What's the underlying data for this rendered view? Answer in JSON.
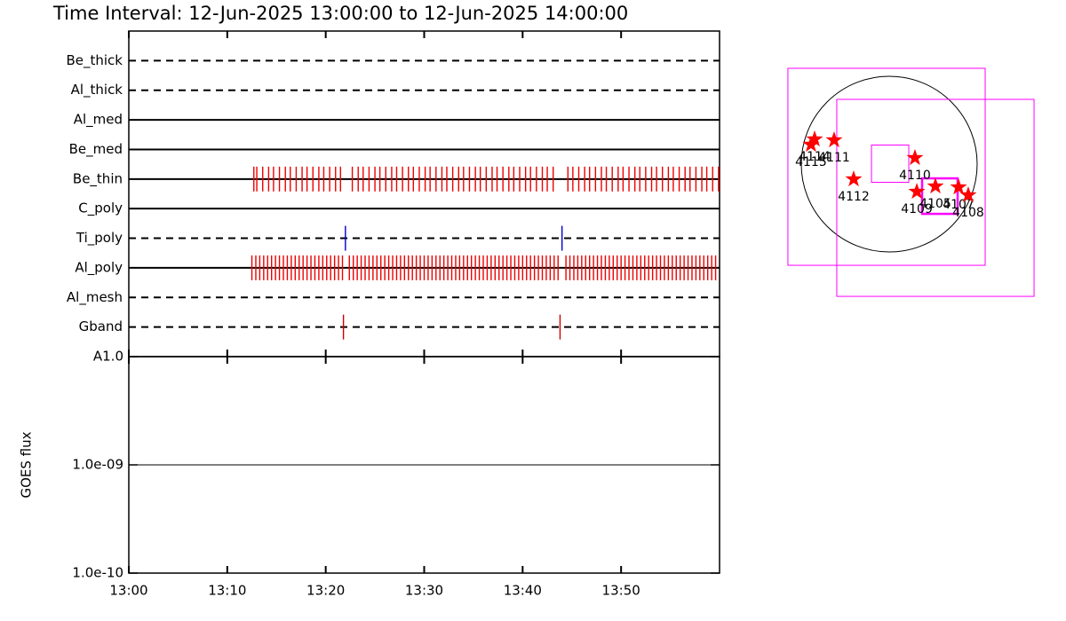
{
  "chart_data": [
    {
      "type": "timeline",
      "title": "Time Interval: 12-Jun-2025 13:00:00 to 12-Jun-2025 14:00:00",
      "xlim": [
        0,
        60
      ],
      "xticks": [
        {
          "value": 0,
          "label": "13:00"
        },
        {
          "value": 10,
          "label": "13:10"
        },
        {
          "value": 20,
          "label": "13:20"
        },
        {
          "value": 30,
          "label": "13:30"
        },
        {
          "value": 40,
          "label": "13:40"
        },
        {
          "value": 50,
          "label": "13:50"
        }
      ],
      "series": [
        {
          "name": "Be_thick",
          "style": "dashed",
          "color": "#ff0000",
          "values": []
        },
        {
          "name": "Al_thick",
          "style": "dashed",
          "color": "#ff0000",
          "values": []
        },
        {
          "name": "Al_med",
          "style": "solid",
          "color": "#ff0000",
          "values": []
        },
        {
          "name": "Be_med",
          "style": "solid",
          "color": "#ff0000",
          "values": []
        },
        {
          "name": "Be_thin",
          "style": "solid",
          "color": "#ee0000",
          "values": [
            12.7,
            13.0,
            13.6,
            14.2,
            14.7,
            15.3,
            15.9,
            16.4,
            17.0,
            17.6,
            18.1,
            18.7,
            19.3,
            19.8,
            20.4,
            21.0,
            21.5,
            22.7,
            23.3,
            23.8,
            24.4,
            25.0,
            25.5,
            26.1,
            26.7,
            27.2,
            27.8,
            28.4,
            28.9,
            29.5,
            30.1,
            30.6,
            31.2,
            31.8,
            32.3,
            32.9,
            33.5,
            34.0,
            34.6,
            35.2,
            35.7,
            36.3,
            36.9,
            37.4,
            38.0,
            38.6,
            39.1,
            39.7,
            40.3,
            40.8,
            41.4,
            42.0,
            42.5,
            43.1,
            44.6,
            45.1,
            45.7,
            46.3,
            46.8,
            47.4,
            48.0,
            48.5,
            49.1,
            49.7,
            50.2,
            50.8,
            51.4,
            51.9,
            52.5,
            53.1,
            53.6,
            54.2,
            54.8,
            55.3,
            55.9,
            56.5,
            57.0,
            57.6,
            58.2,
            58.7,
            59.3,
            59.9
          ]
        },
        {
          "name": "C_poly",
          "style": "solid",
          "color": "#ff0000",
          "values": []
        },
        {
          "name": "Ti_poly",
          "style": "dashed",
          "color": "#0000cc",
          "values": [
            22.0,
            44.0
          ]
        },
        {
          "name": "Al_poly",
          "style": "solid",
          "color": "#ee0000",
          "values": [
            12.5,
            12.9,
            13.3,
            13.7,
            14.1,
            14.5,
            14.9,
            15.3,
            15.7,
            16.1,
            16.5,
            16.9,
            17.3,
            17.7,
            18.1,
            18.5,
            18.9,
            19.3,
            19.7,
            20.1,
            20.5,
            20.9,
            21.3,
            21.7,
            22.4,
            22.8,
            23.2,
            23.6,
            24.0,
            24.4,
            24.8,
            25.2,
            25.6,
            26.0,
            26.4,
            26.8,
            27.2,
            27.6,
            28.0,
            28.4,
            28.8,
            29.2,
            29.6,
            30.0,
            30.4,
            30.8,
            31.2,
            31.6,
            32.0,
            32.4,
            32.8,
            33.2,
            33.6,
            34.0,
            34.4,
            34.8,
            35.2,
            35.6,
            36.0,
            36.4,
            36.8,
            37.2,
            37.6,
            38.0,
            38.4,
            38.8,
            39.2,
            39.6,
            40.0,
            40.4,
            40.8,
            41.2,
            41.6,
            42.0,
            42.4,
            42.8,
            43.2,
            43.6,
            44.4,
            44.8,
            45.2,
            45.6,
            46.0,
            46.4,
            46.8,
            47.2,
            47.6,
            48.0,
            48.4,
            48.8,
            49.2,
            49.6,
            50.0,
            50.4,
            50.8,
            51.2,
            51.6,
            52.0,
            52.4,
            52.8,
            53.2,
            53.6,
            54.0,
            54.4,
            54.8,
            55.2,
            55.6,
            56.0,
            56.4,
            56.8,
            57.2,
            57.6,
            58.0,
            58.4,
            58.8,
            59.2,
            59.6
          ]
        },
        {
          "name": "Al_mesh",
          "style": "dashed",
          "color": "#ff0000",
          "values": []
        },
        {
          "name": "Gband",
          "style": "dashed",
          "color": "#cc0000",
          "values": [
            21.8,
            43.8
          ]
        }
      ]
    },
    {
      "type": "line",
      "ylabel": "GOES flux",
      "log_y": true,
      "xlim": [
        0,
        60
      ],
      "xticks": [
        {
          "value": 0,
          "label": "13:00"
        },
        {
          "value": 10,
          "label": "13:10"
        },
        {
          "value": 20,
          "label": "13:20"
        },
        {
          "value": 30,
          "label": "13:30"
        },
        {
          "value": 40,
          "label": "13:40"
        },
        {
          "value": 50,
          "label": "13:50"
        }
      ],
      "ylim": [
        1e-10,
        1e-08
      ],
      "yticks": [
        {
          "value": 1e-10,
          "label": "1.0e-10"
        },
        {
          "value": 1e-09,
          "label": "1.0e-09"
        },
        {
          "value": 1e-08,
          "label": "A1.0"
        }
      ],
      "x": [
        0,
        59.5
      ],
      "series": [
        {
          "color": "#000000",
          "values": [
            1e-09,
            1e-09
          ]
        }
      ]
    },
    {
      "type": "map",
      "box_color": "#ff00ff",
      "star_color": "#ff0000",
      "boxes": [
        {
          "x": -29,
          "y": -29,
          "size": 2131
        },
        {
          "x": 499,
          "y": -365,
          "size": 2131
        },
        {
          "x": 10,
          "y": 5,
          "size": 403
        },
        {
          "x": 547,
          "y": -346,
          "size": 384
        }
      ],
      "points": [
        {
          "label": "4115",
          "x": -845,
          "y": 211
        },
        {
          "label": "4114",
          "x": -806,
          "y": 269
        },
        {
          "label": "4111",
          "x": -595,
          "y": 259
        },
        {
          "label": "4112",
          "x": -384,
          "y": -163
        },
        {
          "label": "4110",
          "x": 278,
          "y": 67
        },
        {
          "label": "4109",
          "x": 298,
          "y": -298
        },
        {
          "label": "4105",
          "x": 499,
          "y": -240
        },
        {
          "label": "4107",
          "x": 749,
          "y": -250
        },
        {
          "label": "4108",
          "x": 854,
          "y": -336
        }
      ]
    }
  ]
}
